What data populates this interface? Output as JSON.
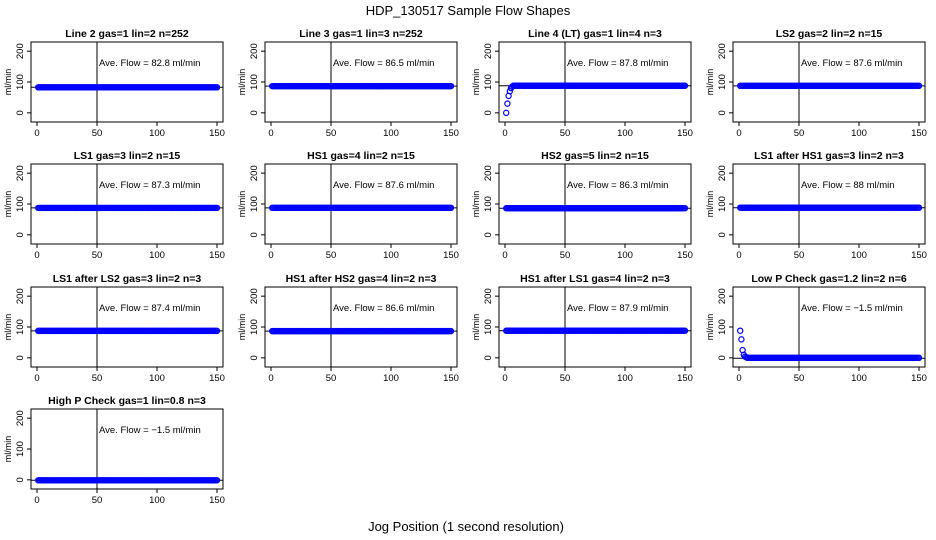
{
  "figure": {
    "title": "HDP_130517  Sample Flow Shapes",
    "xlabel": "Jog Position (1 second resolution)"
  },
  "colors": {
    "points": "#0000ff",
    "axes": "#000000"
  },
  "chart_data": [
    {
      "type": "scatter",
      "title": "Line 2 gas=1 lin=2 n=252",
      "annotation": "Ave. Flow =  82.8  ml/min",
      "ylabel": "ml/min",
      "xlim": [
        0,
        150
      ],
      "ylim": [
        -20,
        220
      ],
      "xticks": [
        0,
        50,
        100,
        150
      ],
      "yticks": [
        0,
        100,
        200
      ],
      "vline_x": 50,
      "hline_y": 82.8,
      "points": {
        "x_start": 1,
        "x_end": 150,
        "y": 82.8
      }
    },
    {
      "type": "scatter",
      "title": "Line 3 gas=1 lin=3 n=252",
      "annotation": "Ave. Flow =  86.5  ml/min",
      "ylabel": "ml/min",
      "xlim": [
        0,
        150
      ],
      "ylim": [
        -20,
        220
      ],
      "xticks": [
        0,
        50,
        100,
        150
      ],
      "yticks": [
        0,
        100,
        200
      ],
      "vline_x": 50,
      "hline_y": 86.5,
      "points": {
        "x_start": 1,
        "x_end": 150,
        "y": 86.5
      }
    },
    {
      "type": "scatter",
      "title": "Line 4 (LT) gas=1 lin=4 n=3",
      "annotation": "Ave. Flow =  87.8  ml/min",
      "ylabel": "ml/min",
      "xlim": [
        0,
        150
      ],
      "ylim": [
        -20,
        220
      ],
      "xticks": [
        0,
        50,
        100,
        150
      ],
      "yticks": [
        0,
        100,
        200
      ],
      "vline_x": 50,
      "hline_y": 87.8,
      "points": {
        "x_start": 1,
        "x_end": 150,
        "y": 87.8,
        "initial": [
          [
            1,
            0
          ],
          [
            2,
            30
          ],
          [
            3,
            55
          ],
          [
            4,
            70
          ],
          [
            5,
            80
          ],
          [
            6,
            85
          ]
        ]
      }
    },
    {
      "type": "scatter",
      "title": "LS2 gas=2 lin=2 n=15",
      "annotation": "Ave. Flow =  87.6  ml/min",
      "ylabel": "ml/min",
      "xlim": [
        0,
        150
      ],
      "ylim": [
        -20,
        220
      ],
      "xticks": [
        0,
        50,
        100,
        150
      ],
      "yticks": [
        0,
        100,
        200
      ],
      "vline_x": 50,
      "hline_y": 87.6,
      "points": {
        "x_start": 1,
        "x_end": 150,
        "y": 87.6
      }
    },
    {
      "type": "scatter",
      "title": "LS1 gas=3 lin=2 n=15",
      "annotation": "Ave. Flow =  87.3  ml/min",
      "ylabel": "ml/min",
      "xlim": [
        0,
        150
      ],
      "ylim": [
        -20,
        220
      ],
      "xticks": [
        0,
        50,
        100,
        150
      ],
      "yticks": [
        0,
        100,
        200
      ],
      "vline_x": 50,
      "hline_y": 87.3,
      "points": {
        "x_start": 1,
        "x_end": 150,
        "y": 87.3
      }
    },
    {
      "type": "scatter",
      "title": "HS1 gas=4 lin=2 n=15",
      "annotation": "Ave. Flow =  87.6  ml/min",
      "ylabel": "ml/min",
      "xlim": [
        0,
        150
      ],
      "ylim": [
        -20,
        220
      ],
      "xticks": [
        0,
        50,
        100,
        150
      ],
      "yticks": [
        0,
        100,
        200
      ],
      "vline_x": 50,
      "hline_y": 87.6,
      "points": {
        "x_start": 1,
        "x_end": 150,
        "y": 87.6
      }
    },
    {
      "type": "scatter",
      "title": "HS2 gas=5 lin=2 n=15",
      "annotation": "Ave. Flow =  86.3  ml/min",
      "ylabel": "ml/min",
      "xlim": [
        0,
        150
      ],
      "ylim": [
        -20,
        220
      ],
      "xticks": [
        0,
        50,
        100,
        150
      ],
      "yticks": [
        0,
        100,
        200
      ],
      "vline_x": 50,
      "hline_y": 86.3,
      "points": {
        "x_start": 1,
        "x_end": 150,
        "y": 86.3
      }
    },
    {
      "type": "scatter",
      "title": "LS1 after HS1 gas=3 lin=2 n=3",
      "annotation": "Ave. Flow =  88  ml/min",
      "ylabel": "ml/min",
      "xlim": [
        0,
        150
      ],
      "ylim": [
        -20,
        220
      ],
      "xticks": [
        0,
        50,
        100,
        150
      ],
      "yticks": [
        0,
        100,
        200
      ],
      "vline_x": 50,
      "hline_y": 88,
      "points": {
        "x_start": 1,
        "x_end": 150,
        "y": 88
      }
    },
    {
      "type": "scatter",
      "title": "LS1 after LS2 gas=3 lin=2 n=3",
      "annotation": "Ave. Flow =  87.4  ml/min",
      "ylabel": "ml/min",
      "xlim": [
        0,
        150
      ],
      "ylim": [
        -20,
        220
      ],
      "xticks": [
        0,
        50,
        100,
        150
      ],
      "yticks": [
        0,
        100,
        200
      ],
      "vline_x": 50,
      "hline_y": 87.4,
      "points": {
        "x_start": 1,
        "x_end": 150,
        "y": 87.4
      }
    },
    {
      "type": "scatter",
      "title": "HS1 after HS2 gas=4 lin=2 n=3",
      "annotation": "Ave. Flow =  86.6  ml/min",
      "ylabel": "ml/min",
      "xlim": [
        0,
        150
      ],
      "ylim": [
        -20,
        220
      ],
      "xticks": [
        0,
        50,
        100,
        150
      ],
      "yticks": [
        0,
        100,
        200
      ],
      "vline_x": 50,
      "hline_y": 86.6,
      "points": {
        "x_start": 1,
        "x_end": 150,
        "y": 86.6
      }
    },
    {
      "type": "scatter",
      "title": "HS1 after LS1 gas=4 lin=2 n=3",
      "annotation": "Ave. Flow =  87.9  ml/min",
      "ylabel": "ml/min",
      "xlim": [
        0,
        150
      ],
      "ylim": [
        -20,
        220
      ],
      "xticks": [
        0,
        50,
        100,
        150
      ],
      "yticks": [
        0,
        100,
        200
      ],
      "vline_x": 50,
      "hline_y": 87.9,
      "points": {
        "x_start": 1,
        "x_end": 150,
        "y": 87.9
      }
    },
    {
      "type": "scatter",
      "title": "Low P Check gas=1.2 lin=2 n=6",
      "annotation": "Ave. Flow =  −1.5  ml/min",
      "ylabel": "ml/min",
      "xlim": [
        0,
        150
      ],
      "ylim": [
        -20,
        220
      ],
      "xticks": [
        0,
        50,
        100,
        150
      ],
      "yticks": [
        0,
        100,
        200
      ],
      "vline_x": 50,
      "hline_y": -1.5,
      "points": {
        "x_start": 1,
        "x_end": 150,
        "y": 0,
        "initial": [
          [
            1,
            88
          ],
          [
            2,
            60
          ],
          [
            3,
            25
          ],
          [
            4,
            10
          ],
          [
            5,
            4
          ],
          [
            6,
            2
          ]
        ]
      }
    },
    {
      "type": "scatter",
      "title": "High P Check gas=1 lin=0.8 n=3",
      "annotation": "Ave. Flow =  −1.5  ml/min",
      "ylabel": "ml/min",
      "xlim": [
        0,
        150
      ],
      "ylim": [
        -20,
        220
      ],
      "xticks": [
        0,
        50,
        100,
        150
      ],
      "yticks": [
        0,
        100,
        200
      ],
      "vline_x": 50,
      "hline_y": -1.5,
      "points": {
        "x_start": 1,
        "x_end": 150,
        "y": -1.5
      }
    }
  ]
}
